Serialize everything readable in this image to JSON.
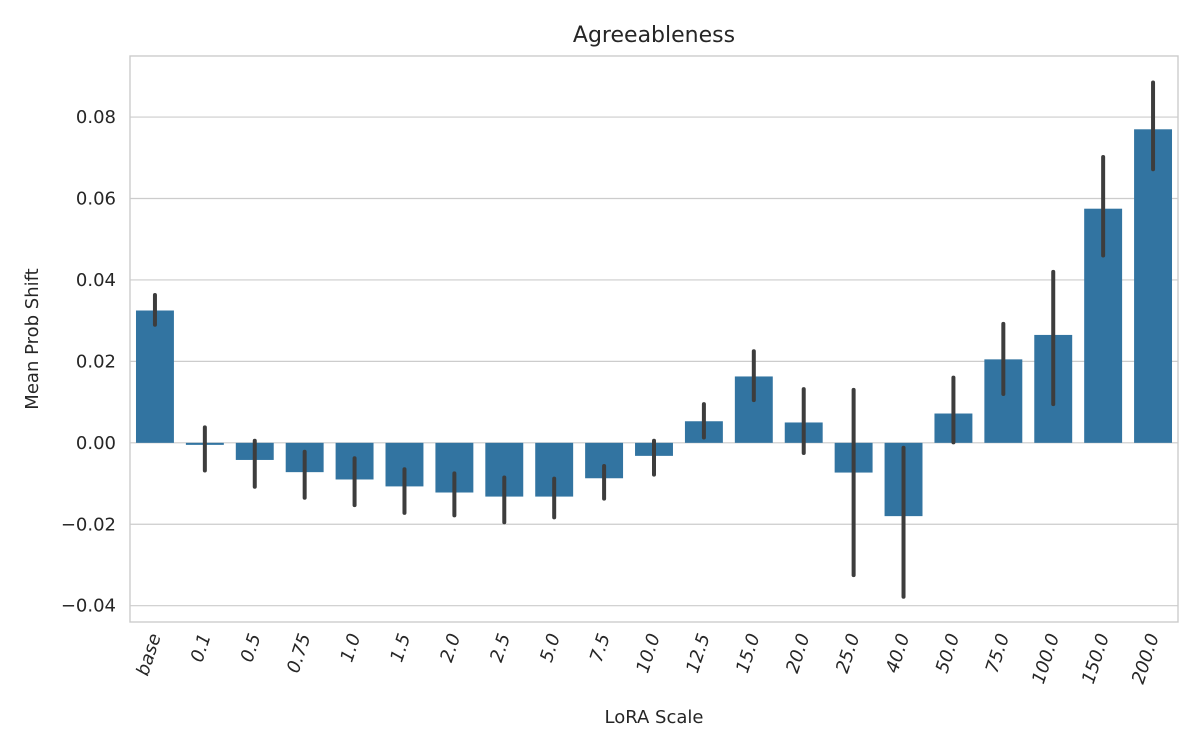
{
  "chart_data": {
    "type": "bar",
    "title": "Agreeableness",
    "xlabel": "LoRA Scale",
    "ylabel": "Mean Prob Shift",
    "ylim": [
      -0.044,
      0.095
    ],
    "yticks": [
      -0.04,
      -0.02,
      0.0,
      0.02,
      0.04,
      0.06,
      0.08
    ],
    "ytick_labels": [
      "−0.04",
      "−0.02",
      "0.00",
      "0.02",
      "0.04",
      "0.06",
      "0.08"
    ],
    "grid": true,
    "color": "#3274a1",
    "error_color": "#3d3d3d",
    "categories": [
      "base",
      "0.1",
      "0.5",
      "0.75",
      "1.0",
      "1.5",
      "2.0",
      "2.5",
      "5.0",
      "7.5",
      "10.0",
      "12.5",
      "15.0",
      "20.0",
      "25.0",
      "40.0",
      "50.0",
      "75.0",
      "100.0",
      "150.0",
      "200.0"
    ],
    "values": [
      0.0325,
      -0.0005,
      -0.0042,
      -0.0072,
      -0.009,
      -0.0107,
      -0.0122,
      -0.0132,
      -0.0132,
      -0.0087,
      -0.0032,
      0.0053,
      0.0163,
      0.005,
      -0.0073,
      -0.018,
      0.0072,
      0.0205,
      0.0265,
      0.0575,
      0.077
    ],
    "error_low": [
      0.029,
      -0.0068,
      -0.0108,
      -0.0135,
      -0.0153,
      -0.0172,
      -0.0178,
      -0.0195,
      -0.0183,
      -0.0137,
      -0.0078,
      0.0013,
      0.0105,
      -0.0025,
      -0.0325,
      -0.0378,
      0.0001,
      0.012,
      0.0095,
      0.046,
      0.0672
    ],
    "error_high": [
      0.0363,
      0.0038,
      0.0005,
      -0.0022,
      -0.0038,
      -0.0065,
      -0.0075,
      -0.0085,
      -0.0088,
      -0.0057,
      0.0005,
      0.0095,
      0.0225,
      0.0132,
      0.013,
      -0.0012,
      0.016,
      0.0292,
      0.042,
      0.0702,
      0.0885
    ]
  }
}
